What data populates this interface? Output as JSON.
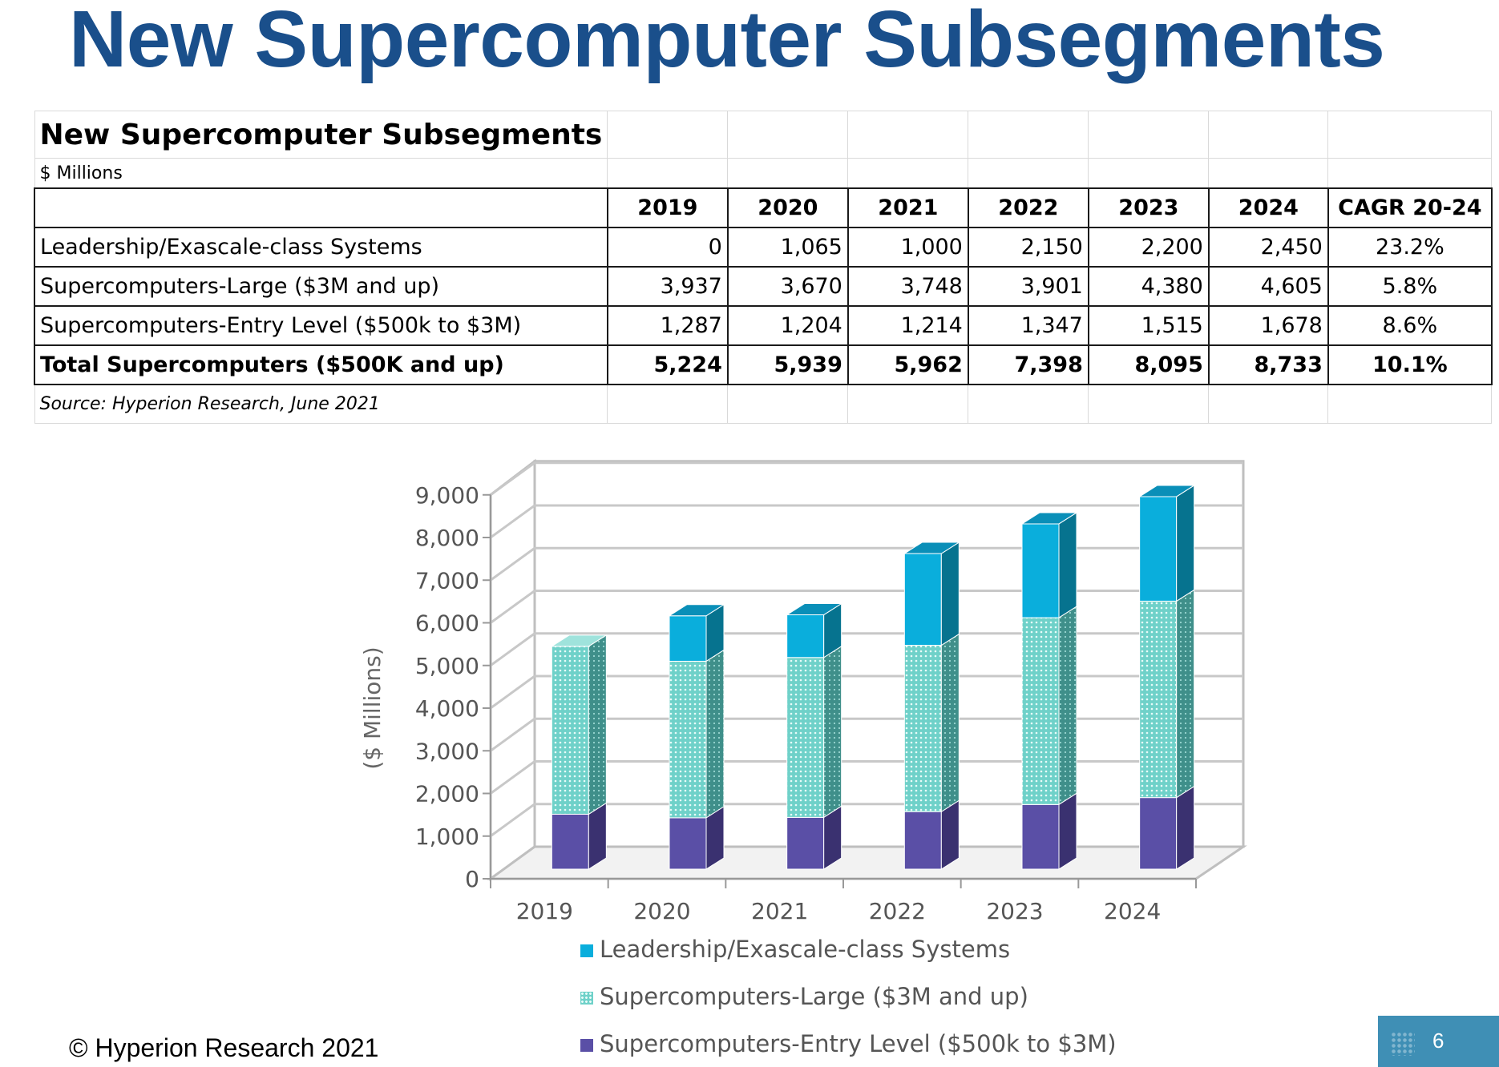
{
  "slide_title": "New Supercomputer Subsegments",
  "table": {
    "title": "New Supercomputer Subsegments",
    "units": "$ Millions",
    "headers": [
      "2019",
      "2020",
      "2021",
      "2022",
      "2023",
      "2024",
      "CAGR 20-24"
    ],
    "rows": [
      {
        "label": "Leadership/Exascale-class Systems",
        "values": [
          "0",
          "1,065",
          "1,000",
          "2,150",
          "2,200",
          "2,450"
        ],
        "cagr": "23.2%"
      },
      {
        "label": "Supercomputers-Large ($3M and up)",
        "values": [
          "3,937",
          "3,670",
          "3,748",
          "3,901",
          "4,380",
          "4,605"
        ],
        "cagr": "5.8%"
      },
      {
        "label": "Supercomputers-Entry Level ($500k to $3M)",
        "values": [
          "1,287",
          "1,204",
          "1,214",
          "1,347",
          "1,515",
          "1,678"
        ],
        "cagr": "8.6%"
      },
      {
        "label": "Total Supercomputers ($500K and up)",
        "values": [
          "5,224",
          "5,939",
          "5,962",
          "7,398",
          "8,095",
          "8,733"
        ],
        "cagr": "10.1%"
      }
    ],
    "source": "Source: Hyperion Research, June 2021"
  },
  "chart_data": {
    "type": "bar",
    "stacked": true,
    "three_d": true,
    "categories": [
      "2019",
      "2020",
      "2021",
      "2022",
      "2023",
      "2024"
    ],
    "series": [
      {
        "name": "Supercomputers-Entry Level ($500k to $3M)",
        "values": [
          1287,
          1204,
          1214,
          1347,
          1515,
          1678
        ],
        "color": "#5a4fa6"
      },
      {
        "name": "Supercomputers-Large ($3M and up)",
        "values": [
          3937,
          3670,
          3748,
          3901,
          4380,
          4605
        ],
        "color": "#6fd1c9",
        "pattern": "dotted"
      },
      {
        "name": "Leadership/Exascale-class Systems",
        "values": [
          0,
          1065,
          1000,
          2150,
          2200,
          2450
        ],
        "color": "#0aaedc"
      }
    ],
    "title": "",
    "xlabel": "",
    "ylabel": "($ Millions)",
    "ylim": [
      0,
      9000
    ],
    "yticks": [
      "0",
      "1,000",
      "2,000",
      "3,000",
      "4,000",
      "5,000",
      "6,000",
      "7,000",
      "8,000",
      "9,000"
    ],
    "grid": true,
    "legend": "bottom"
  },
  "footer": {
    "copyright": "© Hyperion Research 2021",
    "page_number": "6"
  },
  "colors": {
    "title": "#1a4f8b",
    "page_box": "#3f8fb5"
  }
}
